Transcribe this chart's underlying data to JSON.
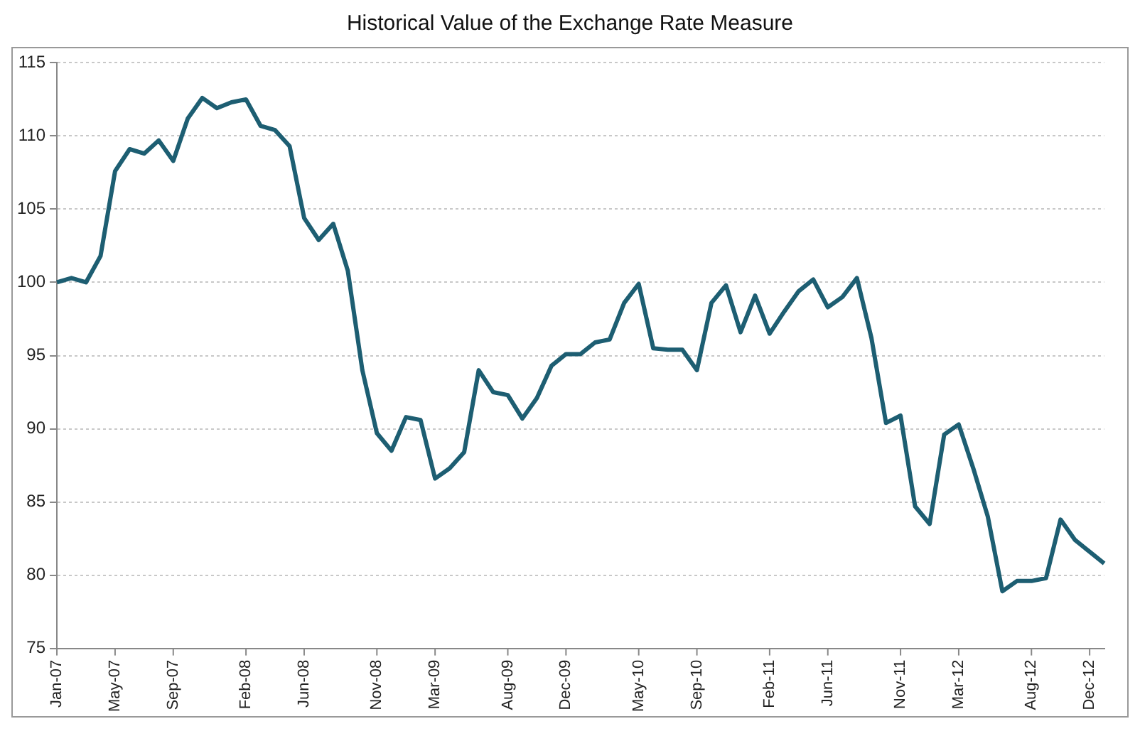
{
  "chart_data": {
    "type": "line",
    "title": "Historical Value of the Exchange Rate Measure",
    "categories": [
      "Jan-07",
      null,
      null,
      null,
      "May-07",
      null,
      null,
      null,
      "Sep-07",
      null,
      null,
      null,
      null,
      "Feb-08",
      null,
      null,
      null,
      "Jun-08",
      null,
      null,
      null,
      null,
      "Nov-08",
      null,
      null,
      null,
      "Mar-09",
      null,
      null,
      null,
      null,
      "Aug-09",
      null,
      null,
      null,
      "Dec-09",
      null,
      null,
      null,
      null,
      "May-10",
      null,
      null,
      null,
      "Sep-10",
      null,
      null,
      null,
      null,
      "Feb-11",
      null,
      null,
      null,
      "Jun-11",
      null,
      null,
      null,
      null,
      "Nov-11",
      null,
      null,
      null,
      "Mar-12",
      null,
      null,
      null,
      null,
      "Aug-12",
      null,
      null,
      null,
      "Dec-12",
      null
    ],
    "series": [
      {
        "color": "#1d5e72",
        "values": [
          100,
          100.3,
          100,
          101.8,
          107.6,
          109.1,
          108.8,
          109.7,
          108.3,
          111.2,
          112.6,
          111.9,
          112.3,
          112.5,
          110.7,
          110.4,
          109.3,
          104.4,
          102.9,
          104,
          100.8,
          94,
          89.7,
          88.5,
          90.8,
          90.6,
          86.6,
          87.3,
          88.4,
          94,
          92.5,
          92.3,
          90.7,
          92.1,
          94.3,
          95.1,
          95.1,
          95.9,
          96.1,
          98.6,
          99.9,
          95.5,
          95.4,
          95.4,
          94,
          98.6,
          99.8,
          96.6,
          99.1,
          96.5,
          98,
          99.4,
          100.2,
          98.3,
          99,
          100.3,
          96.2,
          90.4,
          90.9,
          84.7,
          83.5,
          89.6,
          90.3,
          87.3,
          84,
          78.9,
          79.6,
          79.6,
          79.8,
          83.8,
          82.4,
          81.6,
          80.8
        ]
      }
    ],
    "ylim": [
      75,
      115
    ],
    "yticks": [
      75,
      80,
      85,
      90,
      95,
      100,
      105,
      110,
      115
    ],
    "grid": "y",
    "legend": false,
    "marker": "none",
    "line_style": "solid"
  }
}
